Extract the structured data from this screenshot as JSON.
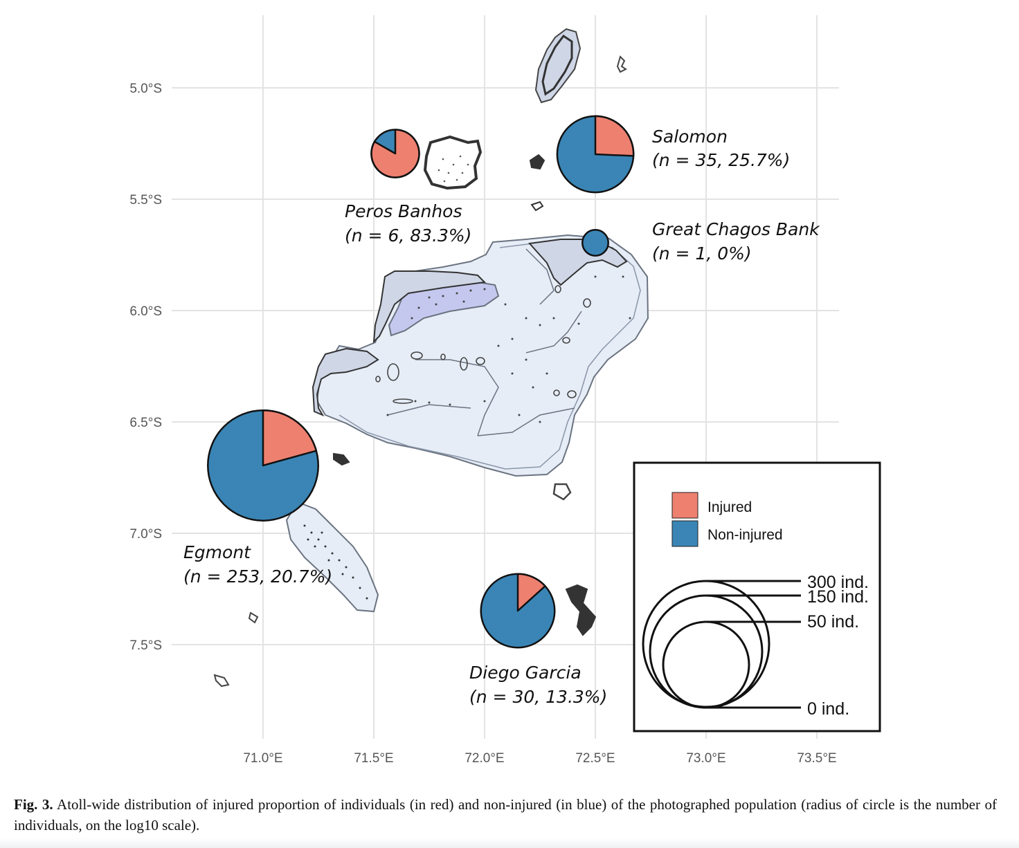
{
  "map": {
    "lat_ticks": [
      "5.0°S",
      "5.5°S",
      "6.0°S",
      "6.5°S",
      "7.0°S",
      "7.5°S"
    ],
    "lon_ticks": [
      "71.0°E",
      "71.5°E",
      "72.0°E",
      "72.5°E",
      "73.0°E",
      "73.5°E"
    ]
  },
  "sites": [
    {
      "name": "Peros Banhos",
      "stats": "(n = 6, 83.3%)",
      "n": 6,
      "injured_pct": 83.3
    },
    {
      "name": "Salomon",
      "stats": "(n = 35, 25.7%)",
      "n": 35,
      "injured_pct": 25.7
    },
    {
      "name": "Great Chagos Bank",
      "stats": "(n = 1, 0%)",
      "n": 1,
      "injured_pct": 0
    },
    {
      "name": "Egmont",
      "stats": "(n = 253, 20.7%)",
      "n": 253,
      "injured_pct": 20.7
    },
    {
      "name": "Diego Garcia",
      "stats": "(n = 30, 13.3%)",
      "n": 30,
      "injured_pct": 13.3
    }
  ],
  "legend": {
    "injured_label": "Injured",
    "noninjured_label": "Non-injured",
    "size_labels": [
      "300 ind.",
      "150 ind.",
      "50 ind.",
      "0 ind."
    ]
  },
  "colors": {
    "injured": "#ee8070",
    "noninjured": "#3a85b5",
    "bank_fill": "#e6edf7",
    "lagoon_fill": "#c4c8ee",
    "land": "#2e2e2e"
  },
  "caption": {
    "label": "Fig. 3.",
    "text": "Atoll-wide distribution of injured proportion of individuals (in red) and non-injured (in blue) of the photographed population (radius of circle is the number of individuals, on the log10 scale)."
  }
}
